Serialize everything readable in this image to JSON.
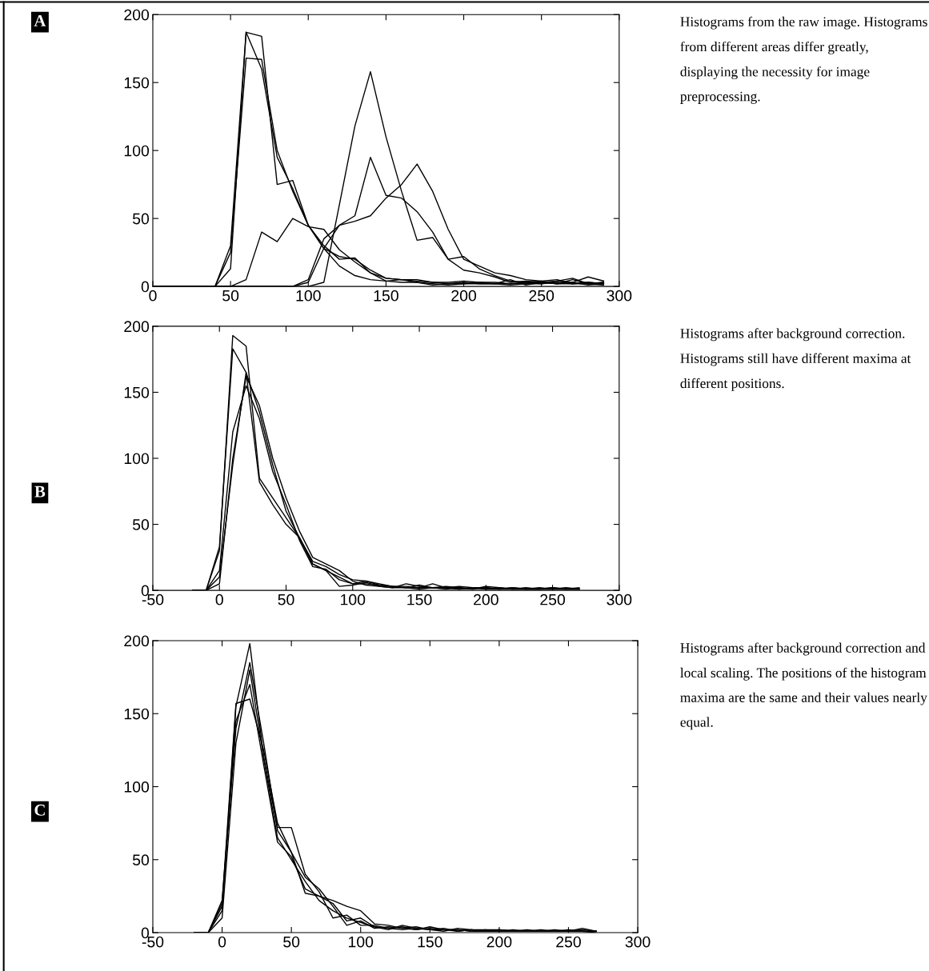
{
  "chart_data": [
    {
      "type": "line",
      "annotations": [
        "A",
        "Histograms from the raw image. Histograms from different areas differ greatly, displaying the necessity for image preprocessing."
      ],
      "x": [
        0,
        10,
        20,
        30,
        40,
        50,
        60,
        70,
        80,
        90,
        100,
        110,
        120,
        130,
        140,
        150,
        160,
        170,
        180,
        190,
        200,
        210,
        220,
        230,
        240,
        250,
        260,
        270,
        280,
        290
      ],
      "xlim": [
        0,
        300
      ],
      "xticks": [
        0,
        50,
        100,
        150,
        200,
        250,
        300
      ],
      "ylim": [
        0,
        200
      ],
      "yticks": [
        0,
        50,
        100,
        150,
        200
      ],
      "grid": false,
      "series": [
        {
          "color": "#000000",
          "values": [
            0,
            0,
            0,
            0,
            0,
            30,
            187,
            184,
            75,
            78,
            45,
            30,
            20,
            21,
            10,
            6,
            5,
            5,
            3,
            3,
            4,
            3,
            3,
            2,
            3,
            4,
            5,
            2,
            3,
            2
          ]
        },
        {
          "color": "#000000",
          "values": [
            0,
            0,
            0,
            0,
            0,
            13,
            187,
            160,
            95,
            72,
            45,
            28,
            22,
            20,
            12,
            6,
            5,
            4,
            3,
            2,
            2,
            2,
            2,
            5,
            1,
            3,
            4,
            6,
            2,
            1
          ]
        },
        {
          "color": "#000000",
          "values": [
            0,
            0,
            0,
            0,
            0,
            25,
            168,
            167,
            100,
            70,
            45,
            28,
            15,
            8,
            5,
            4,
            5,
            3,
            2,
            1,
            2,
            3,
            2,
            2,
            2,
            3,
            2,
            5,
            2,
            3
          ]
        },
        {
          "color": "#000000",
          "values": [
            0,
            0,
            0,
            0,
            0,
            0,
            5,
            40,
            33,
            50,
            44,
            42,
            27,
            18,
            10,
            4,
            3,
            3,
            1,
            2,
            3,
            2,
            2,
            1,
            2,
            2,
            4,
            3,
            7,
            4
          ]
        },
        {
          "color": "#000000",
          "values": [
            0,
            0,
            0,
            0,
            0,
            0,
            0,
            0,
            0,
            0,
            0,
            3,
            60,
            118,
            158,
            110,
            70,
            34,
            36,
            20,
            22,
            13,
            8,
            4,
            3,
            2,
            3,
            2,
            2,
            3
          ]
        },
        {
          "color": "#000000",
          "values": [
            0,
            0,
            0,
            0,
            0,
            0,
            0,
            0,
            0,
            0,
            3,
            28,
            45,
            52,
            95,
            67,
            65,
            55,
            40,
            20,
            12,
            10,
            7,
            3,
            4,
            3,
            2,
            3,
            1,
            2
          ]
        },
        {
          "color": "#000000",
          "values": [
            0,
            0,
            0,
            0,
            0,
            0,
            0,
            0,
            0,
            0,
            5,
            35,
            45,
            48,
            52,
            65,
            75,
            90,
            70,
            42,
            20,
            15,
            10,
            8,
            5,
            4,
            2,
            2,
            3,
            2
          ]
        }
      ]
    },
    {
      "type": "line",
      "annotations": [
        "B",
        "Histograms after background correction. Histograms still have different maxima at different positions."
      ],
      "x": [
        -20,
        -10,
        0,
        10,
        20,
        30,
        40,
        50,
        60,
        70,
        80,
        90,
        100,
        110,
        120,
        130,
        140,
        150,
        160,
        170,
        180,
        190,
        200,
        210,
        220,
        230,
        240,
        250,
        260,
        270
      ],
      "xlim": [
        -50,
        300
      ],
      "xticks": [
        -50,
        0,
        50,
        100,
        150,
        200,
        250,
        300
      ],
      "ylim": [
        0,
        200
      ],
      "yticks": [
        0,
        50,
        100,
        150,
        200
      ],
      "grid": false,
      "series": [
        {
          "color": "#000000",
          "values": [
            0,
            0,
            30,
            193,
            185,
            85,
            70,
            55,
            40,
            22,
            18,
            12,
            8,
            7,
            5,
            3,
            2,
            4,
            2,
            2,
            1,
            2,
            1,
            1,
            2,
            1,
            1,
            1,
            2,
            1
          ]
        },
        {
          "color": "#000000",
          "values": [
            0,
            0,
            33,
            183,
            165,
            82,
            65,
            50,
            40,
            20,
            15,
            10,
            5,
            5,
            4,
            3,
            3,
            2,
            2,
            3,
            2,
            1,
            2,
            1,
            1,
            1,
            2,
            1,
            1,
            1
          ]
        },
        {
          "color": "#000000",
          "values": [
            0,
            0,
            5,
            100,
            162,
            140,
            100,
            70,
            45,
            25,
            20,
            15,
            7,
            4,
            3,
            2,
            5,
            3,
            2,
            1,
            2,
            1,
            3,
            2,
            1,
            1,
            1,
            2,
            1,
            1
          ]
        },
        {
          "color": "#000000",
          "values": [
            0,
            0,
            10,
            95,
            165,
            135,
            95,
            60,
            40,
            20,
            15,
            3,
            4,
            6,
            3,
            2,
            2,
            1,
            2,
            2,
            3,
            2,
            2,
            1,
            2,
            1,
            1,
            1,
            1,
            2
          ]
        },
        {
          "color": "#000000",
          "values": [
            0,
            0,
            15,
            120,
            155,
            130,
            90,
            65,
            38,
            18,
            16,
            8,
            5,
            7,
            4,
            3,
            2,
            2,
            5,
            2,
            1,
            2,
            1,
            2,
            1,
            2,
            1,
            2,
            1,
            1
          ]
        }
      ]
    },
    {
      "type": "line",
      "annotations": [
        "C",
        "Histograms after background correction and local scaling. The positions of the histogram maxima are the same and their values nearly equal."
      ],
      "x": [
        -20,
        -10,
        0,
        10,
        20,
        30,
        40,
        50,
        60,
        70,
        80,
        90,
        100,
        110,
        120,
        130,
        140,
        150,
        160,
        170,
        180,
        190,
        200,
        210,
        220,
        230,
        240,
        250,
        260,
        270
      ],
      "xlim": [
        -50,
        300
      ],
      "xticks": [
        -50,
        0,
        50,
        100,
        150,
        200,
        250,
        300
      ],
      "ylim": [
        0,
        200
      ],
      "yticks": [
        0,
        50,
        100,
        150,
        200
      ],
      "grid": false,
      "series": [
        {
          "color": "#000000",
          "values": [
            0,
            0,
            15,
            155,
            198,
            120,
            72,
            72,
            40,
            28,
            10,
            12,
            5,
            5,
            3,
            4,
            2,
            3,
            2,
            2,
            1,
            2,
            2,
            1,
            1,
            1,
            1,
            2,
            1,
            0
          ]
        },
        {
          "color": "#000000",
          "values": [
            0,
            0,
            20,
            157,
            160,
            125,
            75,
            55,
            27,
            25,
            22,
            18,
            15,
            6,
            5,
            3,
            4,
            2,
            1,
            3,
            2,
            1,
            1,
            2,
            1,
            1,
            1,
            1,
            3,
            1
          ]
        },
        {
          "color": "#000000",
          "values": [
            0,
            0,
            22,
            140,
            185,
            130,
            70,
            55,
            38,
            30,
            18,
            5,
            8,
            3,
            4,
            3,
            2,
            4,
            2,
            1,
            2,
            2,
            1,
            1,
            2,
            1,
            1,
            1,
            1,
            1
          ]
        },
        {
          "color": "#000000",
          "values": [
            0,
            0,
            10,
            130,
            180,
            120,
            65,
            50,
            35,
            22,
            15,
            10,
            7,
            4,
            3,
            2,
            3,
            2,
            2,
            2,
            1,
            1,
            2,
            1,
            1,
            1,
            2,
            1,
            1,
            1
          ]
        },
        {
          "color": "#000000",
          "values": [
            0,
            0,
            18,
            145,
            170,
            115,
            62,
            52,
            30,
            25,
            20,
            8,
            10,
            4,
            2,
            5,
            3,
            2,
            3,
            1,
            2,
            1,
            2,
            1,
            1,
            2,
            1,
            1,
            2,
            1
          ]
        }
      ]
    }
  ]
}
